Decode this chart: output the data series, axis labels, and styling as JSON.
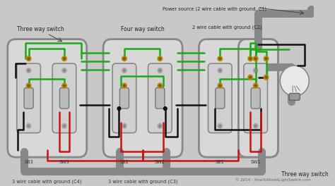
{
  "bg": "#c8c8c8",
  "watermark": "© 2014 - HowToWireALightSwitch.com",
  "labels": {
    "power_source": "Power source (2 wire cable with ground, C1)",
    "cable_c2": "2 wire cable with ground (C2)",
    "cable_c3": "3 wire cable with ground (C3)",
    "cable_c4": "3 wire cable with ground (C4)",
    "three_way_left": "Three way switch",
    "four_way": "Four way switch",
    "three_way_right": "Three way switch",
    "sb3": "SB3",
    "sw3": "SW3",
    "sb2": "SB2",
    "sw2": "SW2",
    "sb1": "SB1",
    "sw1": "SW1"
  },
  "colors": {
    "green": "#1aaa1a",
    "red": "#cc1111",
    "black": "#111111",
    "white": "#f0f0f0",
    "gray": "#aaaaaa",
    "dark_gray": "#666666",
    "gold": "#b8860b",
    "light_gray": "#c8c8c8",
    "box_outer": "#999999",
    "box_inner": "#d8d8d8",
    "plate": "#cccccc",
    "cable_gray": "#888888"
  }
}
